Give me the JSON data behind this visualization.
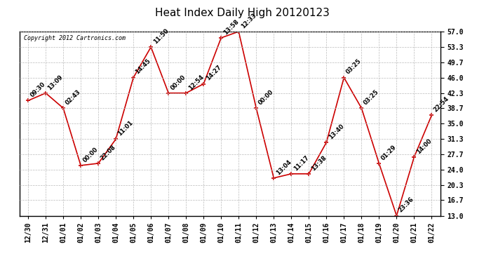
{
  "title": "Heat Index Daily High 20120123",
  "copyright": "Copyright 2012 Cartronics.com",
  "x_labels": [
    "12/30",
    "12/31",
    "01/01",
    "01/02",
    "01/03",
    "01/04",
    "01/05",
    "01/06",
    "01/07",
    "01/08",
    "01/09",
    "01/10",
    "01/11",
    "01/12",
    "01/13",
    "01/14",
    "01/15",
    "01/16",
    "01/17",
    "01/18",
    "01/19",
    "01/20",
    "01/21",
    "01/22"
  ],
  "y_values": [
    40.5,
    42.3,
    38.7,
    25.0,
    25.5,
    31.3,
    46.0,
    53.3,
    42.3,
    42.3,
    44.5,
    55.5,
    57.0,
    38.7,
    22.0,
    23.0,
    23.0,
    30.5,
    46.0,
    38.7,
    25.5,
    13.0,
    27.0,
    37.0
  ],
  "point_labels": [
    "09:30",
    "13:09",
    "02:43",
    "00:00",
    "22:08",
    "11:01",
    "14:45",
    "11:50",
    "00:00",
    "12:54",
    "14:27",
    "13:58",
    "12:33",
    "00:00",
    "13:04",
    "11:17",
    "13:38",
    "13:40",
    "03:25",
    "03:25",
    "01:29",
    "23:36",
    "14:00",
    "22:54"
  ],
  "ylim": [
    13.0,
    57.0
  ],
  "yticks": [
    13.0,
    16.7,
    20.3,
    24.0,
    27.7,
    31.3,
    35.0,
    38.7,
    42.3,
    46.0,
    49.7,
    53.3,
    57.0
  ],
  "line_color": "#cc0000",
  "marker_color": "#cc0000",
  "background_color": "#ffffff",
  "grid_color": "#bbbbbb",
  "title_fontsize": 11,
  "tick_fontsize": 7,
  "point_label_fontsize": 6,
  "copyright_fontsize": 6
}
